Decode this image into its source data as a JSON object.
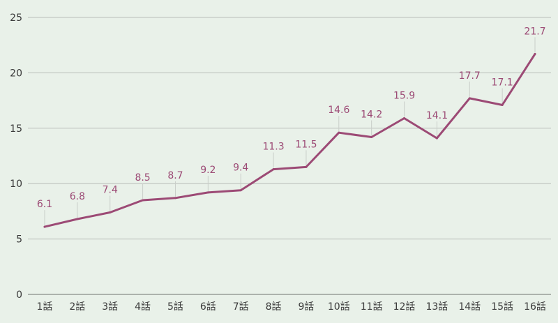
{
  "colors": {
    "background": "#e9f1e9",
    "line": "#9c4a75",
    "label": "#9c4a75"
  },
  "chart_data": {
    "type": "line",
    "title": "",
    "xlabel": "",
    "ylabel": "",
    "ylim": [
      0,
      25
    ],
    "yticks": [
      "0",
      "5",
      "10",
      "15",
      "20",
      "25"
    ],
    "grid": true,
    "categories": [
      "1話",
      "2話",
      "3話",
      "4話",
      "5話",
      "6話",
      "7話",
      "8話",
      "9話",
      "10話",
      "11話",
      "12話",
      "13話",
      "14話",
      "15話",
      "16話"
    ],
    "series": [
      {
        "values": [
          6.1,
          6.8,
          7.4,
          8.5,
          8.7,
          9.2,
          9.4,
          11.3,
          11.5,
          14.6,
          14.2,
          15.9,
          14.1,
          17.7,
          17.1,
          21.7
        ],
        "labels": [
          "6.1",
          "6.8",
          "7.4",
          "8.5",
          "8.7",
          "9.2",
          "9.4",
          "11.3",
          "11.5",
          "14.6",
          "14.2",
          "15.9",
          "14.1",
          "17.7",
          "17.1",
          "21.7"
        ]
      }
    ]
  }
}
